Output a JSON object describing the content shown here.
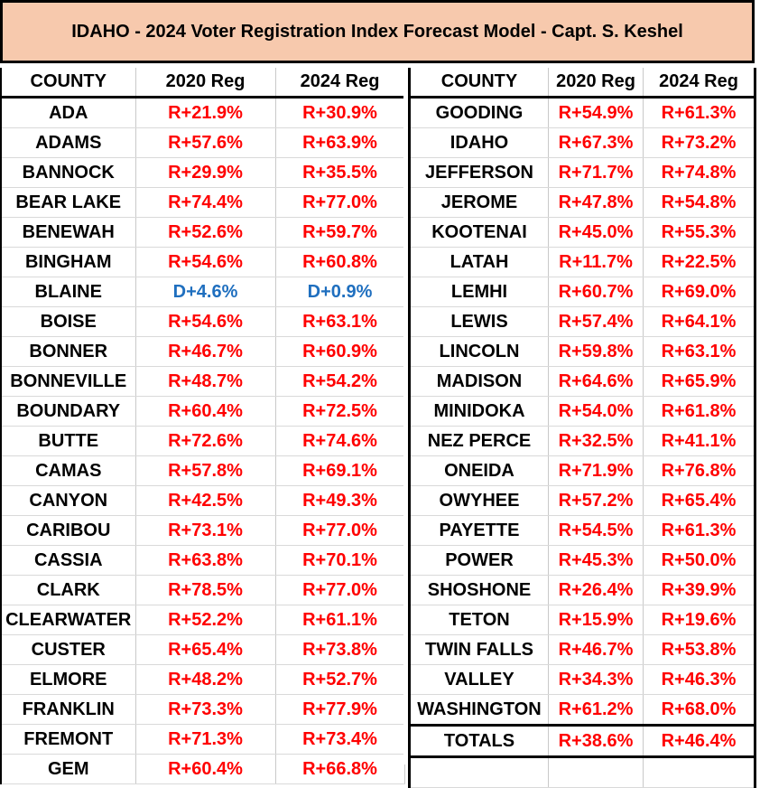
{
  "title": "IDAHO -  2024 Voter Registration Index Forecast Model - Capt. S. Keshel",
  "headers": {
    "county": "COUNTY",
    "reg2020": "2020 Reg",
    "reg2024": "2024 Reg"
  },
  "left_rows": [
    {
      "county": "ADA",
      "reg2020": "R+21.9%",
      "reg2024": "R+30.9%"
    },
    {
      "county": "ADAMS",
      "reg2020": "R+57.6%",
      "reg2024": "R+63.9%"
    },
    {
      "county": "BANNOCK",
      "reg2020": "R+29.9%",
      "reg2024": "R+35.5%"
    },
    {
      "county": "BEAR LAKE",
      "reg2020": "R+74.4%",
      "reg2024": "R+77.0%"
    },
    {
      "county": "BENEWAH",
      "reg2020": "R+52.6%",
      "reg2024": "R+59.7%"
    },
    {
      "county": "BINGHAM",
      "reg2020": "R+54.6%",
      "reg2024": "R+60.8%"
    },
    {
      "county": "BLAINE",
      "reg2020": "D+4.6%",
      "reg2024": "D+0.9%"
    },
    {
      "county": "BOISE",
      "reg2020": "R+54.6%",
      "reg2024": "R+63.1%"
    },
    {
      "county": "BONNER",
      "reg2020": "R+46.7%",
      "reg2024": "R+60.9%"
    },
    {
      "county": "BONNEVILLE",
      "reg2020": "R+48.7%",
      "reg2024": "R+54.2%"
    },
    {
      "county": "BOUNDARY",
      "reg2020": "R+60.4%",
      "reg2024": "R+72.5%"
    },
    {
      "county": "BUTTE",
      "reg2020": "R+72.6%",
      "reg2024": "R+74.6%"
    },
    {
      "county": "CAMAS",
      "reg2020": "R+57.8%",
      "reg2024": "R+69.1%"
    },
    {
      "county": "CANYON",
      "reg2020": "R+42.5%",
      "reg2024": "R+49.3%"
    },
    {
      "county": "CARIBOU",
      "reg2020": "R+73.1%",
      "reg2024": "R+77.0%"
    },
    {
      "county": "CASSIA",
      "reg2020": "R+63.8%",
      "reg2024": "R+70.1%"
    },
    {
      "county": "CLARK",
      "reg2020": "R+78.5%",
      "reg2024": "R+77.0%"
    },
    {
      "county": "CLEARWATER",
      "reg2020": "R+52.2%",
      "reg2024": "R+61.1%"
    },
    {
      "county": "CUSTER",
      "reg2020": "R+65.4%",
      "reg2024": "R+73.8%"
    },
    {
      "county": "ELMORE",
      "reg2020": "R+48.2%",
      "reg2024": "R+52.7%"
    },
    {
      "county": "FRANKLIN",
      "reg2020": "R+73.3%",
      "reg2024": "R+77.9%"
    },
    {
      "county": "FREMONT",
      "reg2020": "R+71.3%",
      "reg2024": "R+73.4%"
    },
    {
      "county": "GEM",
      "reg2020": "R+60.4%",
      "reg2024": "R+66.8%"
    }
  ],
  "right_rows": [
    {
      "county": "GOODING",
      "reg2020": "R+54.9%",
      "reg2024": "R+61.3%"
    },
    {
      "county": "IDAHO",
      "reg2020": "R+67.3%",
      "reg2024": "R+73.2%"
    },
    {
      "county": "JEFFERSON",
      "reg2020": "R+71.7%",
      "reg2024": "R+74.8%"
    },
    {
      "county": "JEROME",
      "reg2020": "R+47.8%",
      "reg2024": "R+54.8%"
    },
    {
      "county": "KOOTENAI",
      "reg2020": "R+45.0%",
      "reg2024": "R+55.3%"
    },
    {
      "county": "LATAH",
      "reg2020": "R+11.7%",
      "reg2024": "R+22.5%"
    },
    {
      "county": "LEMHI",
      "reg2020": "R+60.7%",
      "reg2024": "R+69.0%"
    },
    {
      "county": "LEWIS",
      "reg2020": "R+57.4%",
      "reg2024": "R+64.1%"
    },
    {
      "county": "LINCOLN",
      "reg2020": "R+59.8%",
      "reg2024": "R+63.1%"
    },
    {
      "county": "MADISON",
      "reg2020": "R+64.6%",
      "reg2024": "R+65.9%"
    },
    {
      "county": "MINIDOKA",
      "reg2020": "R+54.0%",
      "reg2024": "R+61.8%"
    },
    {
      "county": "NEZ PERCE",
      "reg2020": "R+32.5%",
      "reg2024": "R+41.1%"
    },
    {
      "county": "ONEIDA",
      "reg2020": "R+71.9%",
      "reg2024": "R+76.8%"
    },
    {
      "county": "OWYHEE",
      "reg2020": "R+57.2%",
      "reg2024": "R+65.4%"
    },
    {
      "county": "PAYETTE",
      "reg2020": "R+54.5%",
      "reg2024": "R+61.3%"
    },
    {
      "county": "POWER",
      "reg2020": "R+45.3%",
      "reg2024": "R+50.0%"
    },
    {
      "county": "SHOSHONE",
      "reg2020": "R+26.4%",
      "reg2024": "R+39.9%"
    },
    {
      "county": "TETON",
      "reg2020": "R+15.9%",
      "reg2024": "R+19.6%"
    },
    {
      "county": "TWIN FALLS",
      "reg2020": "R+46.7%",
      "reg2024": "R+53.8%"
    },
    {
      "county": "VALLEY",
      "reg2020": "R+34.3%",
      "reg2024": "R+46.3%"
    },
    {
      "county": "WASHINGTON",
      "reg2020": "R+61.2%",
      "reg2024": "R+68.0%"
    }
  ],
  "totals": {
    "label": "TOTALS",
    "reg2020": "R+38.6%",
    "reg2024": "R+46.4%"
  },
  "colors": {
    "title_bg": "#f7c9ad",
    "republican": "#ff0000",
    "democrat": "#1f6fbf"
  }
}
